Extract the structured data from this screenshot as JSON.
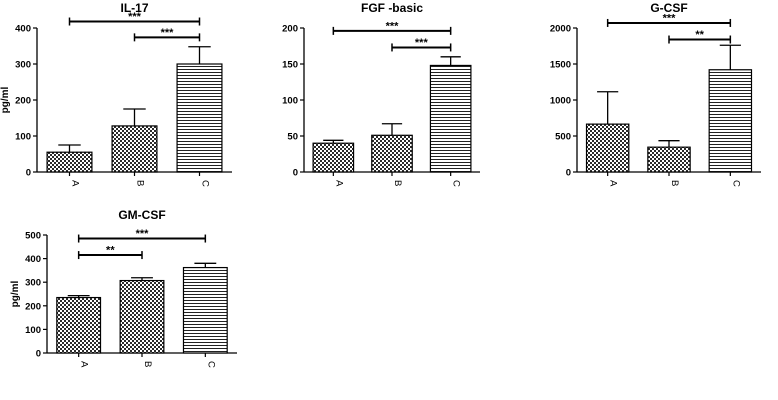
{
  "chart_data": [
    {
      "type": "bar",
      "title": "IL-17",
      "ylabel": "pg/ml",
      "categories": [
        "A",
        "B",
        "C"
      ],
      "values": [
        55,
        128,
        300
      ],
      "errors": [
        20,
        47,
        48
      ],
      "patterns": [
        "checker",
        "checker",
        "hlines"
      ],
      "ylim": [
        0,
        400
      ],
      "yticks": [
        0,
        100,
        200,
        300,
        400
      ],
      "significance": [
        {
          "from": "A",
          "to": "C",
          "label": "***",
          "y": 418
        },
        {
          "from": "B",
          "to": "C",
          "label": "***",
          "y": 374
        }
      ]
    },
    {
      "type": "bar",
      "title": "FGF -basic",
      "ylabel": "",
      "categories": [
        "A",
        "B",
        "C"
      ],
      "values": [
        40,
        51,
        148
      ],
      "errors": [
        4,
        16,
        12
      ],
      "patterns": [
        "checker",
        "checker",
        "hlines"
      ],
      "ylim": [
        0,
        200
      ],
      "yticks": [
        0,
        50,
        100,
        150,
        200
      ],
      "significance": [
        {
          "from": "A",
          "to": "C",
          "label": "***",
          "y": 196
        },
        {
          "from": "B",
          "to": "C",
          "label": "***",
          "y": 173
        }
      ]
    },
    {
      "type": "bar",
      "title": "G-CSF",
      "ylabel": "",
      "categories": [
        "A",
        "B",
        "C"
      ],
      "values": [
        665,
        345,
        1420
      ],
      "errors": [
        450,
        90,
        340
      ],
      "patterns": [
        "checker",
        "checker",
        "hlines"
      ],
      "ylim": [
        0,
        2000
      ],
      "yticks": [
        0,
        500,
        1000,
        1500,
        2000
      ],
      "significance": [
        {
          "from": "A",
          "to": "C",
          "label": "***",
          "y": 2070
        },
        {
          "from": "B",
          "to": "C",
          "label": "**",
          "y": 1840
        }
      ]
    },
    {
      "type": "bar",
      "title": "GM-CSF",
      "ylabel": "pg/ml",
      "categories": [
        "A",
        "B",
        "C"
      ],
      "values": [
        235,
        307,
        362
      ],
      "errors": [
        8,
        12,
        18
      ],
      "patterns": [
        "checker",
        "checker",
        "hlines"
      ],
      "ylim": [
        0,
        500
      ],
      "yticks": [
        0,
        100,
        200,
        300,
        400,
        500
      ],
      "significance": [
        {
          "from": "A",
          "to": "C",
          "label": "***",
          "y": 485
        },
        {
          "from": "A",
          "to": "B",
          "label": "**",
          "y": 415
        }
      ]
    }
  ]
}
